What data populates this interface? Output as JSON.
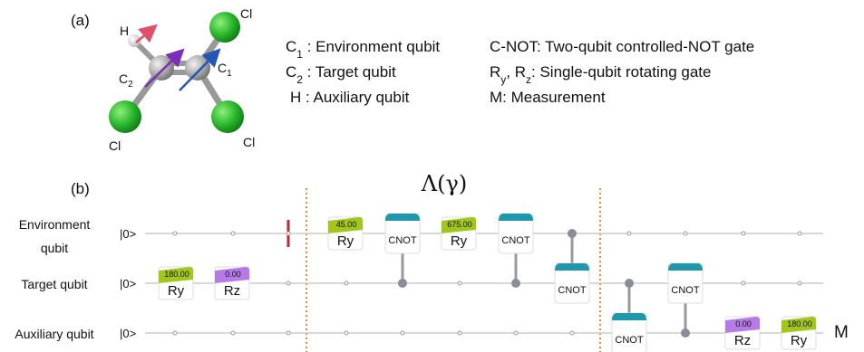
{
  "panel_a": {
    "label": "(a)",
    "atoms": {
      "h": "H",
      "c2": [
        {
          "text": "C"
        },
        {
          "sub": "2"
        }
      ],
      "c1": [
        {
          "text": "C"
        },
        {
          "sub": "1"
        }
      ],
      "cl_top": "Cl",
      "cl_left": "Cl",
      "cl_right": "Cl"
    },
    "legend": [
      [
        {
          "text": "C"
        },
        {
          "sub": "1"
        },
        {
          "text": " : Environment qubit"
        }
      ],
      [
        {
          "text": "C"
        },
        {
          "sub": "2"
        },
        {
          "text": " : Target qubit"
        }
      ],
      [
        {
          "text": "H : Auxiliary qubit"
        }
      ],
      [
        {
          "text": "C-NOT: Two-qubit controlled-NOT gate"
        }
      ],
      [
        {
          "text": "R"
        },
        {
          "sub": "y"
        },
        {
          "text": ", R"
        },
        {
          "sub": "z"
        },
        {
          "text": ": Single-qubit rotating gate"
        }
      ],
      [
        {
          "text": "M: Measurement"
        }
      ]
    ]
  },
  "panel_b": {
    "label": "(b)",
    "block_label": "Λ(γ)",
    "qubits": [
      {
        "name": [
          "Environment",
          "qubit"
        ],
        "state": "|0>"
      },
      {
        "name": [
          "Target qubit"
        ],
        "state": "|0>"
      },
      {
        "name": [
          "Auxiliary qubit"
        ],
        "state": "|0>"
      }
    ],
    "gates": [
      {
        "name": "Ry",
        "angle": "180.00"
      },
      {
        "name": "Rz",
        "angle": "0.00"
      },
      {
        "name": "Ry",
        "angle": "45.00"
      },
      {
        "name": "CNOT"
      },
      {
        "name": "Ry",
        "angle": "675.00"
      },
      {
        "name": "CNOT"
      },
      {
        "name": "CNOT"
      },
      {
        "name": "CNOT"
      },
      {
        "name": "CNOT"
      },
      {
        "name": "Rz",
        "angle": "0.00"
      },
      {
        "name": "Ry",
        "angle": "180.00"
      }
    ],
    "measurement": "M"
  }
}
